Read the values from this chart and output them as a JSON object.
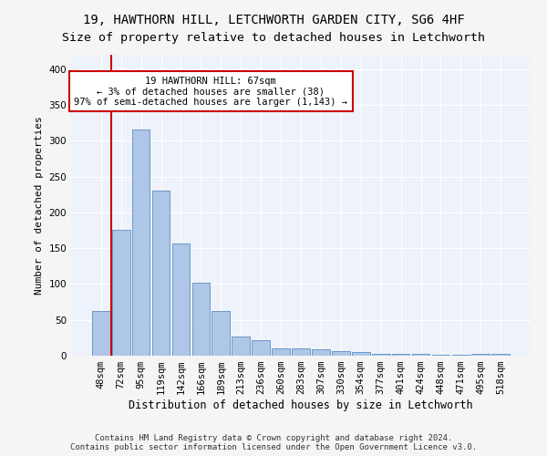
{
  "title1": "19, HAWTHORN HILL, LETCHWORTH GARDEN CITY, SG6 4HF",
  "title2": "Size of property relative to detached houses in Letchworth",
  "xlabel": "Distribution of detached houses by size in Letchworth",
  "ylabel": "Number of detached properties",
  "footnote": "Contains HM Land Registry data © Crown copyright and database right 2024.\nContains public sector information licensed under the Open Government Licence v3.0.",
  "bar_labels": [
    "48sqm",
    "72sqm",
    "95sqm",
    "119sqm",
    "142sqm",
    "166sqm",
    "189sqm",
    "213sqm",
    "236sqm",
    "260sqm",
    "283sqm",
    "307sqm",
    "330sqm",
    "354sqm",
    "377sqm",
    "401sqm",
    "424sqm",
    "448sqm",
    "471sqm",
    "495sqm",
    "518sqm"
  ],
  "bar_values": [
    63,
    175,
    315,
    230,
    157,
    102,
    62,
    27,
    22,
    10,
    10,
    9,
    7,
    5,
    3,
    3,
    2,
    1,
    1,
    3,
    3
  ],
  "bar_color": "#aec6e8",
  "bar_edge_color": "#5a8fc0",
  "annotation_text": "19 HAWTHORN HILL: 67sqm\n← 3% of detached houses are smaller (38)\n97% of semi-detached houses are larger (1,143) →",
  "annotation_box_color": "#ffffff",
  "annotation_box_edge": "#cc0000",
  "vline_color": "#cc0000",
  "ylim": [
    0,
    420
  ],
  "yticks": [
    0,
    50,
    100,
    150,
    200,
    250,
    300,
    350,
    400
  ],
  "background_color": "#eef2fa",
  "grid_color": "#ffffff",
  "title1_fontsize": 10,
  "title2_fontsize": 9.5,
  "xlabel_fontsize": 8.5,
  "ylabel_fontsize": 8,
  "tick_fontsize": 7.5,
  "ann_fontsize": 7.5,
  "footnote_fontsize": 6.5
}
